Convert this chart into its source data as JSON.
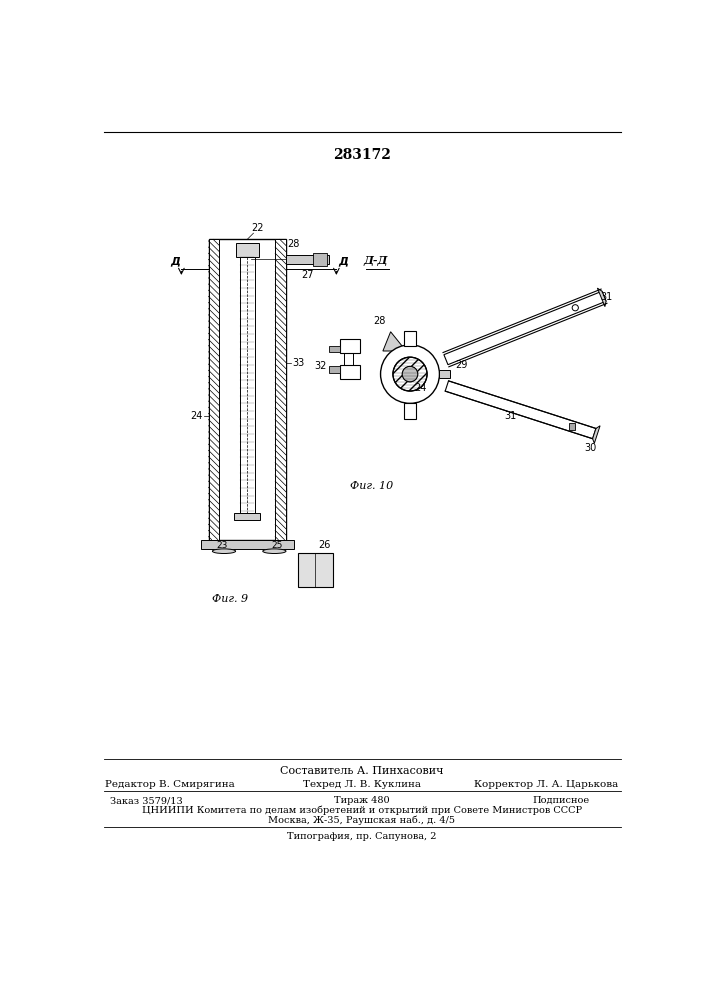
{
  "title": "283172",
  "bg_color": "#ffffff",
  "footer_composer": "Составитель А. Пинхасович",
  "footer_editor": "Редактор В. Смирягина",
  "footer_tech": "Техред Л. В. Куклина",
  "footer_corrector": "Корректор Л. А. Царькова",
  "footer_order": "Заказ 3579/13",
  "footer_tirazh": "Тираж 480",
  "footer_podpisnoe": "Подписное",
  "footer_tsniipi": "ЦНИИПИ Комитета по делам изобретений и открытий при Совете Министров СССР",
  "footer_moscow": "Москва, Ж-35, Раушская наб., д. 4/5",
  "footer_tipografia": "Типография, пр. Сапунова, 2",
  "fig9_label": "Фиг. 9",
  "fig10_label": "Фиг. 10",
  "dd_label": "Д-Д",
  "d_left_label": "Д",
  "d_right_label": "Д"
}
